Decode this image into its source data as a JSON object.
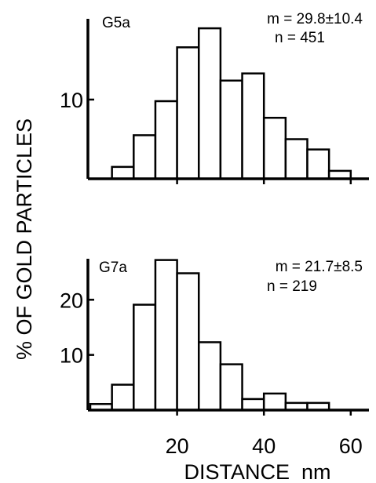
{
  "chart_data": [
    {
      "type": "bar",
      "panel_label": "G5a",
      "stat_mean": "m = 29.8±10.4",
      "stat_n": "n = 451",
      "x": [
        7.5,
        12.5,
        17.5,
        22.5,
        27.5,
        32.5,
        37.5,
        42.5,
        47.5,
        52.5,
        57.5
      ],
      "values": [
        1.5,
        5.5,
        9.8,
        16.6,
        19.0,
        12.4,
        13.3,
        7.7,
        5.0,
        3.7,
        1.0
      ],
      "bin_width": 5,
      "ylim": [
        0,
        20
      ],
      "yticks": [
        10
      ],
      "ytick_labels": [
        "10"
      ]
    },
    {
      "type": "bar",
      "panel_label": "G7a",
      "stat_mean": "m = 21.7±8.5",
      "stat_n": "n = 219",
      "x": [
        2.5,
        7.5,
        12.5,
        17.5,
        22.5,
        27.5,
        32.5,
        37.5,
        42.5,
        47.5,
        52.5
      ],
      "values": [
        1.1,
        4.6,
        19.1,
        27.2,
        24.8,
        12.3,
        8.3,
        2.0,
        3.0,
        1.3,
        1.3
      ],
      "bin_width": 5,
      "ylim": [
        0,
        28
      ],
      "yticks": [
        10,
        20
      ],
      "ytick_labels": [
        "10",
        "20"
      ]
    }
  ],
  "axes": {
    "ylabel": "% OF GOLD PARTICLES",
    "xlabel": "DISTANCE  nm",
    "xticks": [
      20,
      40,
      60
    ],
    "xtick_labels": [
      "20",
      "40",
      "60"
    ],
    "xlim": [
      0,
      65
    ]
  }
}
